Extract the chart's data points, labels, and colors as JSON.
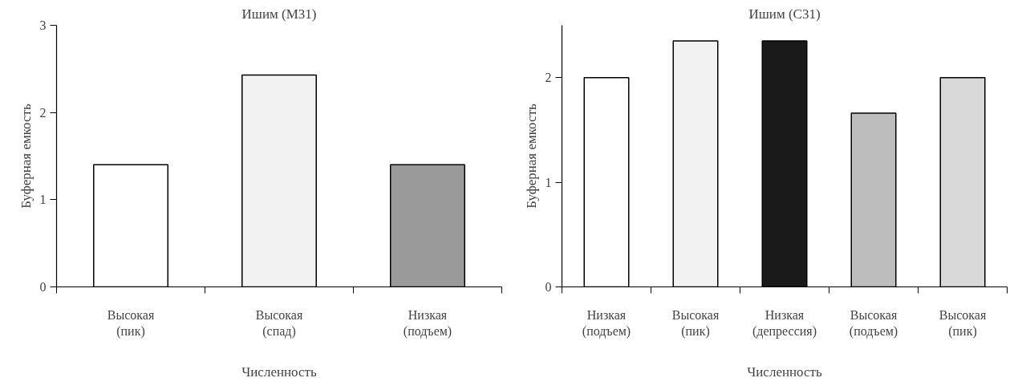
{
  "chart_data": [
    {
      "type": "bar",
      "title": "Ишим (M31)",
      "xlabel": "Численность",
      "ylabel": "Буферная емкость",
      "categories": [
        "Высокая\n(пик)",
        "Высокая\n(спад)",
        "Низкая\n(подъем)"
      ],
      "values": [
        1.4,
        2.43,
        1.4
      ],
      "colors": [
        "#ffffff",
        "#f2f2f2",
        "#9a9a9a"
      ],
      "ylim": [
        0,
        3
      ],
      "yticks": [
        0,
        1,
        2,
        3
      ],
      "grid": false
    },
    {
      "type": "bar",
      "title": "Ишим (C31)",
      "xlabel": "Численность",
      "ylabel": "Буферная емкость",
      "categories": [
        "Низкая\n(подъем)",
        "Высокая\n(пик)",
        "Низкая\n(депрессия)",
        "Высокая\n(подъем)",
        "Высокая\n(пик)"
      ],
      "values": [
        2.0,
        2.35,
        2.35,
        1.66,
        2.0
      ],
      "colors": [
        "#ffffff",
        "#f2f2f2",
        "#1a1a1a",
        "#bdbdbd",
        "#d9d9d9"
      ],
      "ylim": [
        0,
        2.5
      ],
      "yticks": [
        0,
        1,
        2
      ],
      "grid": false
    }
  ]
}
